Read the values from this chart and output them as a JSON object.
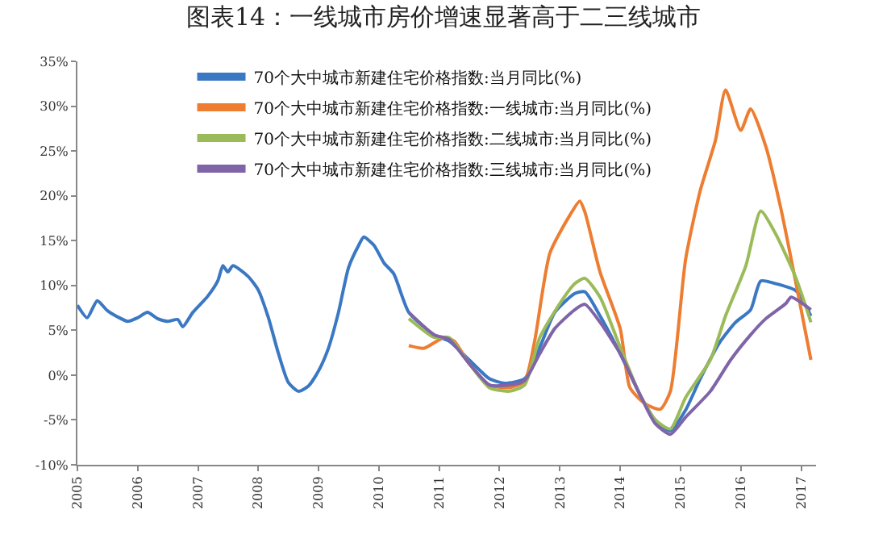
{
  "chart_data": {
    "type": "line",
    "title": "图表14：一线城市房价增速显著高于二三线城市",
    "xlim": [
      "2005-01",
      "2017-04"
    ],
    "xticks": [
      "2005",
      "2006",
      "2007",
      "2008",
      "2009",
      "2010",
      "2011",
      "2012",
      "2013",
      "2014",
      "2015",
      "2016",
      "2017"
    ],
    "ylim": [
      -10,
      35
    ],
    "yticks": [
      {
        "value": -10,
        "label": "-10%"
      },
      {
        "value": -5,
        "label": "-5%"
      },
      {
        "value": 0,
        "label": "0%"
      },
      {
        "value": 5,
        "label": "5%"
      },
      {
        "value": 10,
        "label": "10%"
      },
      {
        "value": 15,
        "label": "15%"
      },
      {
        "value": 20,
        "label": "20%"
      },
      {
        "value": 25,
        "label": "25%"
      },
      {
        "value": 30,
        "label": "30%"
      },
      {
        "value": 35,
        "label": "35%"
      }
    ],
    "legend": "top",
    "marker": "none",
    "line_style": "solid",
    "series": [
      {
        "name": "70个大中城市新建住宅价格指数:当月同比(%)",
        "color": "#3a78c3",
        "x": [
          "2005-01",
          "2005-03",
          "2005-05",
          "2005-07",
          "2005-09",
          "2005-11",
          "2006-01",
          "2006-03",
          "2006-05",
          "2006-07",
          "2006-09",
          "2006-10",
          "2006-12",
          "2007-03",
          "2007-05",
          "2007-06",
          "2007-07",
          "2007-08",
          "2007-11",
          "2008-01",
          "2008-03",
          "2008-05",
          "2008-07",
          "2008-09",
          "2008-11",
          "2009-01",
          "2009-03",
          "2009-05",
          "2009-07",
          "2009-09",
          "2009-10",
          "2009-12",
          "2010-02",
          "2010-04",
          "2010-07",
          "2010-12",
          "2011-03",
          "2011-07",
          "2011-11",
          "2012-02",
          "2012-06",
          "2012-09",
          "2012-12",
          "2013-04",
          "2013-06",
          "2013-09",
          "2014-01",
          "2014-05",
          "2014-08",
          "2014-11",
          "2015-02",
          "2015-05",
          "2015-09",
          "2015-12",
          "2016-03",
          "2016-05",
          "2016-08",
          "2016-12",
          "2017-03"
        ],
        "values": [
          7.8,
          6.4,
          8.3,
          7.2,
          6.5,
          6.0,
          6.4,
          7.0,
          6.3,
          6.0,
          6.2,
          5.4,
          7.0,
          8.8,
          10.5,
          12.2,
          11.5,
          12.2,
          11.0,
          9.5,
          6.5,
          2.5,
          -0.8,
          -1.8,
          -1.2,
          0.5,
          3.0,
          7.0,
          12.0,
          14.5,
          15.4,
          14.5,
          12.5,
          11.3,
          7.0,
          4.5,
          3.8,
          1.7,
          -0.4,
          -0.9,
          -0.4,
          3.1,
          7.0,
          9.1,
          9.3,
          6.6,
          2.4,
          -2.2,
          -5.0,
          -6.2,
          -3.9,
          -0.4,
          3.8,
          5.9,
          7.3,
          10.5,
          10.2,
          9.4,
          6.6
        ]
      },
      {
        "name": "70个大中城市新建住宅价格指数:一线城市:当月同比(%)",
        "color": "#ed7d31",
        "x": [
          "2010-07",
          "2010-10",
          "2011-02",
          "2011-04",
          "2011-07",
          "2011-11",
          "2012-03",
          "2012-06",
          "2012-08",
          "2012-11",
          "2013-03",
          "2013-05",
          "2013-06",
          "2013-09",
          "2014-01",
          "2014-03",
          "2014-06",
          "2014-09",
          "2014-11",
          "2015-02",
          "2015-05",
          "2015-08",
          "2015-10",
          "2016-01",
          "2016-03",
          "2016-06",
          "2016-09",
          "2016-12",
          "2017-03"
        ],
        "values": [
          3.3,
          3.0,
          4.2,
          3.8,
          1.3,
          -1.1,
          -1.4,
          -0.7,
          3.8,
          13.6,
          17.8,
          19.4,
          18.2,
          11.5,
          5.2,
          -1.4,
          -3.2,
          -3.8,
          -1.8,
          12.9,
          20.6,
          26.2,
          31.8,
          27.3,
          29.7,
          25.5,
          18.5,
          10.2,
          1.7
        ]
      },
      {
        "name": "70个大中城市新建住宅价格指数:二线城市:当月同比(%)",
        "color": "#9bbb59",
        "x": [
          "2010-07",
          "2010-12",
          "2011-03",
          "2011-07",
          "2011-11",
          "2012-03",
          "2012-06",
          "2012-09",
          "2013-01",
          "2013-04",
          "2013-06",
          "2013-09",
          "2014-01",
          "2014-05",
          "2014-08",
          "2014-11",
          "2015-02",
          "2015-07",
          "2015-10",
          "2016-02",
          "2016-05",
          "2016-08",
          "2016-12",
          "2017-03"
        ],
        "values": [
          6.3,
          4.2,
          4.2,
          1.3,
          -1.4,
          -1.8,
          -1.1,
          4.2,
          8.0,
          10.2,
          10.8,
          8.7,
          3.1,
          -2.2,
          -5.0,
          -6.0,
          -2.5,
          1.7,
          6.6,
          12.2,
          18.3,
          15.7,
          10.8,
          5.9
        ]
      },
      {
        "name": "70个大中城市新建住宅价格指数:三线城市:当月同比(%)",
        "color": "#7f64a8",
        "x": [
          "2010-07",
          "2010-12",
          "2011-03",
          "2011-07",
          "2011-11",
          "2012-03",
          "2012-06",
          "2012-09",
          "2012-12",
          "2013-04",
          "2013-06",
          "2013-09",
          "2014-01",
          "2014-05",
          "2014-08",
          "2014-11",
          "2015-02",
          "2015-07",
          "2015-11",
          "2016-03",
          "2016-06",
          "2016-10",
          "2016-11",
          "2017-03"
        ],
        "values": [
          7.0,
          4.5,
          4.0,
          1.3,
          -1.1,
          -1.1,
          -0.6,
          2.4,
          5.2,
          7.3,
          7.9,
          5.9,
          2.4,
          -2.2,
          -5.4,
          -6.6,
          -4.7,
          -1.8,
          1.7,
          4.5,
          6.3,
          8.0,
          8.7,
          7.3
        ]
      }
    ]
  }
}
